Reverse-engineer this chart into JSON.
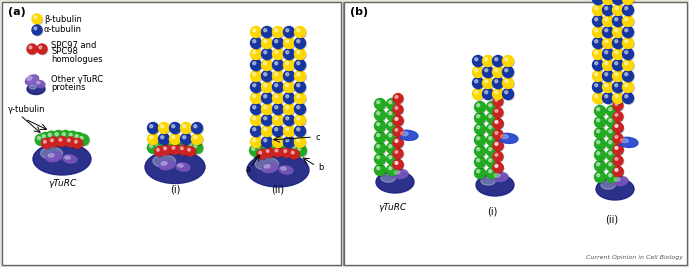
{
  "panel_a_label": "(a)",
  "panel_b_label": "(b)",
  "bg_color": "#e8e4dc",
  "yellow_color": "#FFD700",
  "blue_color": "#1535a0",
  "red_color": "#cc2222",
  "green_color": "#22aa22",
  "purple_color": "#7755bb",
  "dark_blue_color": "#1a2080",
  "mid_blue_color": "#2244cc",
  "footer_text": "Current Opinion in Cell Biology",
  "label_gammatrc": "γTuRC",
  "sub_i": "(i)",
  "sub_ii": "(ii)"
}
